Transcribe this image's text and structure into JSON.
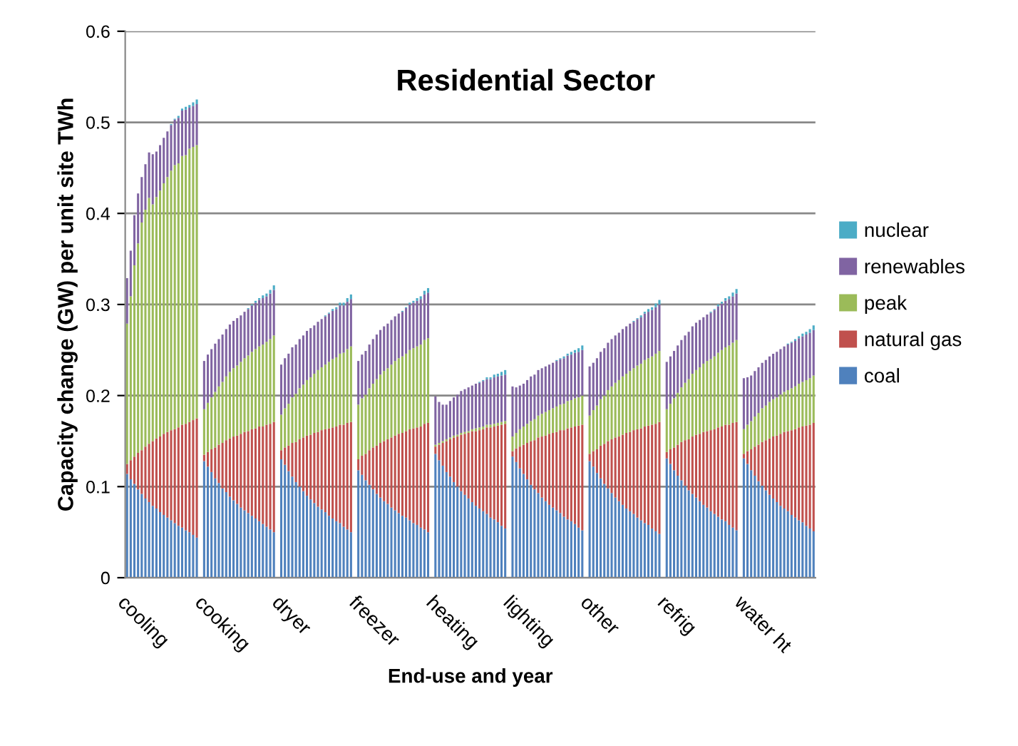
{
  "chart_data": {
    "type": "bar",
    "title": "Residential Sector",
    "xlabel": "End-use and year",
    "ylabel": "Capacity change (GW) per unit site TWh",
    "stacked": true,
    "categories": [
      "cooling",
      null,
      null,
      null,
      null,
      null,
      null,
      null,
      null,
      null,
      null,
      null,
      null,
      null,
      null,
      null,
      null,
      null,
      null,
      null,
      null,
      "cooking",
      null,
      null,
      null,
      null,
      null,
      null,
      null,
      null,
      null,
      null,
      null,
      null,
      null,
      null,
      null,
      null,
      null,
      null,
      null,
      null,
      "dryer",
      null,
      null,
      null,
      null,
      null,
      null,
      null,
      null,
      null,
      null,
      null,
      null,
      null,
      null,
      null,
      null,
      null,
      null,
      null,
      null,
      "freezer",
      null,
      null,
      null,
      null,
      null,
      null,
      null,
      null,
      null,
      null,
      null,
      null,
      null,
      null,
      null,
      null,
      null,
      null,
      null,
      null,
      "heating",
      null,
      null,
      null,
      null,
      null,
      null,
      null,
      null,
      null,
      null,
      null,
      null,
      null,
      null,
      null,
      null,
      null,
      null,
      null,
      null,
      "lighting",
      null,
      null,
      null,
      null,
      null,
      null,
      null,
      null,
      null,
      null,
      null,
      null,
      null,
      null,
      null,
      null,
      null,
      null,
      null,
      null,
      "other",
      null,
      null,
      null,
      null,
      null,
      null,
      null,
      null,
      null,
      null,
      null,
      null,
      null,
      null,
      null,
      null,
      null,
      null,
      null,
      null,
      "refrig",
      null,
      null,
      null,
      null,
      null,
      null,
      null,
      null,
      null,
      null,
      null,
      null,
      null,
      null,
      null,
      null,
      null,
      null,
      null,
      null,
      "water ht",
      null,
      null,
      null,
      null,
      null,
      null,
      null,
      null,
      null,
      null,
      null,
      null,
      null,
      null,
      null,
      null,
      null,
      null,
      null
    ],
    "series": [
      {
        "name": "coal",
        "color": "#4f81bd",
        "values": [
          0.114,
          0.108,
          0.103,
          0.097,
          0.092,
          0.087,
          0.083,
          0.079,
          0.076,
          0.072,
          0.069,
          0.066,
          0.063,
          0.06,
          0.057,
          0.055,
          0.052,
          0.05,
          0.047,
          0.044,
          null,
          0.128,
          0.122,
          0.116,
          0.109,
          0.104,
          0.098,
          0.094,
          0.089,
          0.085,
          0.081,
          0.077,
          0.074,
          0.071,
          0.068,
          0.065,
          0.062,
          0.059,
          0.056,
          0.053,
          0.05,
          null,
          0.13,
          0.124,
          0.117,
          0.111,
          0.105,
          0.1,
          0.095,
          0.09,
          0.086,
          0.082,
          0.078,
          0.075,
          0.072,
          0.068,
          0.065,
          0.062,
          0.06,
          0.056,
          0.053,
          0.05,
          null,
          0.118,
          0.113,
          0.107,
          0.102,
          0.097,
          0.092,
          0.088,
          0.084,
          0.081,
          0.077,
          0.074,
          0.071,
          0.068,
          0.066,
          0.063,
          0.06,
          0.058,
          0.055,
          0.053,
          0.05,
          null,
          0.136,
          0.129,
          0.123,
          0.116,
          0.111,
          0.105,
          0.1,
          0.095,
          0.091,
          0.087,
          0.083,
          0.079,
          0.076,
          0.073,
          0.07,
          0.066,
          0.064,
          0.061,
          0.057,
          0.054,
          null,
          0.133,
          0.127,
          0.12,
          0.114,
          0.108,
          0.102,
          0.097,
          0.093,
          0.088,
          0.084,
          0.08,
          0.077,
          0.074,
          0.071,
          0.067,
          0.064,
          0.062,
          0.059,
          0.055,
          0.052,
          null,
          0.128,
          0.122,
          0.115,
          0.109,
          0.103,
          0.098,
          0.093,
          0.088,
          0.084,
          0.08,
          0.076,
          0.073,
          0.07,
          0.066,
          0.063,
          0.06,
          0.058,
          0.054,
          0.051,
          0.048,
          null,
          0.131,
          0.125,
          0.118,
          0.112,
          0.107,
          0.101,
          0.096,
          0.092,
          0.088,
          0.084,
          0.08,
          0.077,
          0.073,
          0.07,
          0.067,
          0.064,
          0.062,
          0.058,
          0.055,
          0.052,
          null,
          0.131,
          0.125,
          0.118,
          0.112,
          0.106,
          0.101,
          0.096,
          0.091,
          0.087,
          0.083,
          0.079,
          0.076,
          0.073,
          0.069,
          0.066,
          0.063,
          0.061,
          0.057,
          0.054,
          0.051
        ]
      },
      {
        "name": "natural gas",
        "color": "#c0504d",
        "values": [
          0.011,
          0.021,
          0.03,
          0.04,
          0.048,
          0.057,
          0.064,
          0.071,
          0.077,
          0.083,
          0.089,
          0.094,
          0.099,
          0.103,
          0.108,
          0.113,
          0.117,
          0.121,
          0.126,
          0.131,
          null,
          0.007,
          0.016,
          0.025,
          0.034,
          0.042,
          0.05,
          0.057,
          0.064,
          0.07,
          0.075,
          0.081,
          0.086,
          0.09,
          0.095,
          0.099,
          0.104,
          0.107,
          0.112,
          0.116,
          0.121,
          null,
          0.01,
          0.019,
          0.028,
          0.037,
          0.044,
          0.052,
          0.059,
          0.066,
          0.071,
          0.077,
          0.082,
          0.087,
          0.091,
          0.096,
          0.1,
          0.104,
          0.108,
          0.112,
          0.117,
          0.121,
          null,
          0.012,
          0.021,
          0.029,
          0.038,
          0.046,
          0.053,
          0.06,
          0.066,
          0.071,
          0.077,
          0.082,
          0.087,
          0.091,
          0.095,
          0.1,
          0.104,
          0.107,
          0.111,
          0.116,
          0.12,
          null,
          0.008,
          0.017,
          0.025,
          0.034,
          0.041,
          0.049,
          0.055,
          0.062,
          0.067,
          0.072,
          0.078,
          0.082,
          0.086,
          0.09,
          0.095,
          0.099,
          0.102,
          0.106,
          0.111,
          0.115,
          null,
          0.006,
          0.015,
          0.024,
          0.032,
          0.04,
          0.048,
          0.054,
          0.061,
          0.067,
          0.072,
          0.078,
          0.082,
          0.086,
          0.091,
          0.095,
          0.1,
          0.103,
          0.107,
          0.112,
          0.116,
          null,
          0.008,
          0.017,
          0.026,
          0.036,
          0.044,
          0.052,
          0.059,
          0.066,
          0.071,
          0.077,
          0.083,
          0.087,
          0.092,
          0.097,
          0.101,
          0.106,
          0.109,
          0.114,
          0.118,
          0.123,
          null,
          0.007,
          0.016,
          0.025,
          0.034,
          0.042,
          0.05,
          0.056,
          0.063,
          0.069,
          0.074,
          0.08,
          0.084,
          0.089,
          0.093,
          0.098,
          0.102,
          0.106,
          0.11,
          0.115,
          0.119,
          null,
          0.005,
          0.014,
          0.023,
          0.032,
          0.04,
          0.048,
          0.055,
          0.062,
          0.068,
          0.073,
          0.079,
          0.084,
          0.088,
          0.093,
          0.097,
          0.102,
          0.105,
          0.11,
          0.114,
          0.119
        ]
      },
      {
        "name": "peak",
        "color": "#9bbb59",
        "values": [
          0.154,
          0.18,
          0.21,
          0.23,
          0.25,
          0.26,
          0.27,
          0.26,
          0.265,
          0.27,
          0.275,
          0.28,
          0.285,
          0.29,
          0.29,
          0.295,
          0.295,
          0.3,
          0.3,
          0.3,
          null,
          0.05,
          0.054,
          0.057,
          0.061,
          0.064,
          0.067,
          0.07,
          0.073,
          0.075,
          0.077,
          0.079,
          0.081,
          0.083,
          0.085,
          0.087,
          0.088,
          0.09,
          0.091,
          0.093,
          0.095,
          null,
          0.039,
          0.043,
          0.046,
          0.05,
          0.053,
          0.056,
          0.058,
          0.061,
          0.063,
          0.065,
          0.068,
          0.069,
          0.071,
          0.073,
          0.075,
          0.076,
          0.078,
          0.079,
          0.081,
          0.083,
          null,
          0.06,
          0.063,
          0.065,
          0.068,
          0.07,
          0.073,
          0.075,
          0.077,
          0.078,
          0.08,
          0.082,
          0.083,
          0.084,
          0.085,
          0.087,
          0.088,
          0.089,
          0.09,
          0.092,
          0.093,
          null,
          0.002,
          0.002,
          0.002,
          0.002,
          0.002,
          0.002,
          0.002,
          0.002,
          0.002,
          0.002,
          0.002,
          0.003,
          0.003,
          0.003,
          0.003,
          0.003,
          0.003,
          0.003,
          0.003,
          0.003,
          null,
          0.016,
          0.017,
          0.019,
          0.02,
          0.021,
          0.022,
          0.023,
          0.024,
          0.025,
          0.026,
          0.026,
          0.027,
          0.028,
          0.028,
          0.029,
          0.03,
          0.03,
          0.031,
          0.031,
          0.032,
          null,
          0.042,
          0.045,
          0.048,
          0.051,
          0.053,
          0.056,
          0.058,
          0.06,
          0.062,
          0.064,
          0.065,
          0.067,
          0.068,
          0.07,
          0.071,
          0.073,
          0.074,
          0.075,
          0.077,
          0.078,
          null,
          0.047,
          0.05,
          0.054,
          0.057,
          0.06,
          0.063,
          0.066,
          0.069,
          0.071,
          0.073,
          0.075,
          0.077,
          0.078,
          0.08,
          0.082,
          0.084,
          0.085,
          0.087,
          0.088,
          0.09,
          null,
          0.027,
          0.029,
          0.031,
          0.033,
          0.035,
          0.037,
          0.038,
          0.04,
          0.041,
          0.042,
          0.043,
          0.044,
          0.045,
          0.046,
          0.047,
          0.048,
          0.049,
          0.05,
          0.051,
          0.052
        ]
      },
      {
        "name": "renewables",
        "color": "#8064a2",
        "values": [
          0.05,
          0.05,
          0.055,
          0.055,
          0.05,
          0.05,
          0.05,
          0.055,
          0.05,
          0.05,
          0.05,
          0.05,
          0.05,
          0.05,
          0.05,
          0.05,
          0.05,
          0.045,
          0.045,
          0.045,
          null,
          0.053,
          0.053,
          0.053,
          0.053,
          0.052,
          0.052,
          0.052,
          0.052,
          0.052,
          0.052,
          0.051,
          0.051,
          0.051,
          0.051,
          0.051,
          0.051,
          0.051,
          0.05,
          0.05,
          0.05,
          null,
          0.055,
          0.055,
          0.055,
          0.055,
          0.054,
          0.054,
          0.054,
          0.054,
          0.054,
          0.053,
          0.053,
          0.053,
          0.053,
          0.053,
          0.053,
          0.053,
          0.053,
          0.052,
          0.052,
          0.052,
          null,
          0.048,
          0.048,
          0.048,
          0.048,
          0.049,
          0.049,
          0.049,
          0.049,
          0.049,
          0.049,
          0.049,
          0.049,
          0.049,
          0.05,
          0.05,
          0.05,
          0.05,
          0.05,
          0.05,
          0.05,
          null,
          0.053,
          0.045,
          0.04,
          0.038,
          0.04,
          0.042,
          0.044,
          0.046,
          0.047,
          0.048,
          0.048,
          0.049,
          0.049,
          0.05,
          0.05,
          0.05,
          0.051,
          0.051,
          0.051,
          0.051,
          null,
          0.055,
          0.05,
          0.048,
          0.047,
          0.048,
          0.049,
          0.049,
          0.05,
          0.05,
          0.05,
          0.05,
          0.05,
          0.05,
          0.05,
          0.05,
          0.05,
          0.05,
          0.05,
          0.05,
          0.05,
          null,
          0.054,
          0.052,
          0.052,
          0.052,
          0.052,
          0.052,
          0.052,
          0.052,
          0.052,
          0.052,
          0.052,
          0.052,
          0.051,
          0.051,
          0.051,
          0.051,
          0.051,
          0.051,
          0.051,
          0.051,
          null,
          0.052,
          0.052,
          0.052,
          0.052,
          0.052,
          0.052,
          0.052,
          0.052,
          0.052,
          0.052,
          0.051,
          0.051,
          0.051,
          0.051,
          0.051,
          0.051,
          0.051,
          0.051,
          0.051,
          0.051,
          null,
          0.056,
          0.052,
          0.05,
          0.05,
          0.05,
          0.05,
          0.05,
          0.05,
          0.05,
          0.05,
          0.05,
          0.05,
          0.05,
          0.05,
          0.05,
          0.05,
          0.05,
          0.05,
          0.05,
          0.05
        ]
      },
      {
        "name": "nuclear",
        "color": "#4bacc6",
        "values": [
          0,
          0,
          0,
          0,
          0,
          0,
          0,
          0,
          0,
          0,
          0,
          0,
          0.001,
          0.001,
          0.002,
          0.002,
          0.003,
          0.003,
          0.004,
          0.005,
          null,
          0,
          0,
          0,
          0,
          0,
          0,
          0,
          0,
          0,
          0,
          0,
          0,
          0.001,
          0.001,
          0.002,
          0.002,
          0.003,
          0.003,
          0.004,
          0.005,
          null,
          0,
          0,
          0,
          0,
          0,
          0,
          0,
          0,
          0,
          0,
          0,
          0,
          0.001,
          0.001,
          0.002,
          0.002,
          0.003,
          0.003,
          0.004,
          0.005,
          null,
          0,
          0,
          0,
          0,
          0,
          0,
          0,
          0,
          0,
          0,
          0,
          0,
          0.001,
          0.001,
          0.002,
          0.002,
          0.003,
          0.003,
          0.004,
          0.005,
          null,
          0,
          0,
          0,
          0,
          0,
          0,
          0,
          0,
          0,
          0,
          0,
          0,
          0.001,
          0.001,
          0.002,
          0.002,
          0.003,
          0.003,
          0.004,
          0.005,
          null,
          0,
          0,
          0,
          0,
          0,
          0,
          0,
          0,
          0,
          0,
          0,
          0,
          0.001,
          0.001,
          0.002,
          0.002,
          0.003,
          0.003,
          0.004,
          0.005,
          null,
          0,
          0,
          0,
          0,
          0,
          0,
          0,
          0,
          0,
          0,
          0,
          0,
          0.001,
          0.001,
          0.002,
          0.002,
          0.003,
          0.003,
          0.004,
          0.005,
          null,
          0,
          0,
          0,
          0,
          0,
          0,
          0,
          0,
          0,
          0,
          0,
          0,
          0.001,
          0.001,
          0.002,
          0.002,
          0.003,
          0.003,
          0.004,
          0.005,
          null,
          0,
          0,
          0,
          0,
          0,
          0,
          0,
          0,
          0,
          0,
          0,
          0,
          0.001,
          0.001,
          0.002,
          0.002,
          0.003,
          0.003,
          0.004,
          0.005
        ]
      }
    ],
    "ylim": [
      0,
      0.6
    ],
    "yticks": [
      0,
      0.1,
      0.2,
      0.3,
      0.4,
      0.5,
      0.6
    ],
    "grid": "y",
    "legend": "right"
  }
}
